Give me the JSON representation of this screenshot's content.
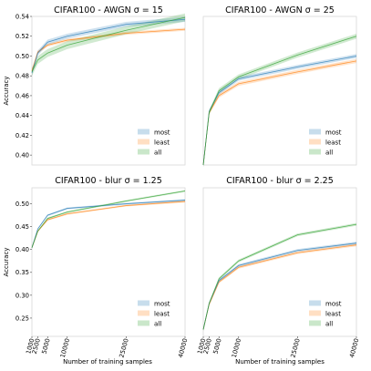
{
  "colors": {
    "most": "#1f77b4",
    "least": "#ff7f0e",
    "all": "#2ca02c"
  },
  "chart_data": [
    {
      "type": "line",
      "title": "CIFAR100 - AWGN σ = 15",
      "xlabel": "",
      "ylabel": "Accuracy",
      "xlim": [
        1000,
        40000
      ],
      "ylim": [
        0.39,
        0.54
      ],
      "yticks": [
        "0.40",
        "0.42",
        "0.44",
        "0.46",
        "0.48",
        "0.50",
        "0.52",
        "0.54"
      ],
      "ytick_values": [
        0.4,
        0.42,
        0.44,
        0.46,
        0.48,
        0.5,
        0.52,
        0.54
      ],
      "xticks": [],
      "xtick_values": [],
      "legend": {
        "position": "lower-right",
        "entries": [
          "most",
          "least",
          "all"
        ]
      },
      "x": [
        1000,
        2500,
        5000,
        10000,
        25000,
        40000
      ],
      "series": [
        {
          "name": "most",
          "values": [
            0.483,
            0.503,
            0.514,
            0.52,
            0.532,
            0.537
          ],
          "band": 0.0025
        },
        {
          "name": "least",
          "values": [
            0.485,
            0.504,
            0.511,
            0.516,
            0.523,
            0.527
          ],
          "band": 0.0015
        },
        {
          "name": "all",
          "values": [
            0.484,
            0.496,
            0.503,
            0.511,
            0.526,
            0.539
          ],
          "band": 0.004
        }
      ]
    },
    {
      "type": "line",
      "title": "CIFAR100 - AWGN σ = 25",
      "xlabel": "",
      "ylabel": "",
      "xlim": [
        1000,
        40000
      ],
      "ylim": [
        0.39,
        0.54
      ],
      "yticks": [],
      "ytick_values": [],
      "xticks": [],
      "xtick_values": [],
      "legend": {
        "position": "lower-right",
        "entries": [
          "most",
          "least",
          "all"
        ]
      },
      "x": [
        1000,
        2500,
        5000,
        10000,
        25000,
        40000
      ],
      "series": [
        {
          "name": "most",
          "values": [
            0.39,
            0.444,
            0.463,
            0.477,
            0.489,
            0.5
          ],
          "band": 0.002
        },
        {
          "name": "least",
          "values": [
            0.39,
            0.443,
            0.46,
            0.472,
            0.484,
            0.495
          ],
          "band": 0.002
        },
        {
          "name": "all",
          "values": [
            0.39,
            0.443,
            0.465,
            0.479,
            0.501,
            0.52
          ],
          "band": 0.0025
        }
      ]
    },
    {
      "type": "line",
      "title": "CIFAR100 - blur σ = 1.25",
      "xlabel": "",
      "ylabel": "Accuracy",
      "xlim": [
        1000,
        40000
      ],
      "ylim": [
        0.21,
        0.535
      ],
      "yticks": [
        "0.25",
        "0.30",
        "0.35",
        "0.40",
        "0.45",
        "0.50"
      ],
      "ytick_values": [
        0.25,
        0.3,
        0.35,
        0.4,
        0.45,
        0.5
      ],
      "xticks": [
        "1000",
        "2500",
        "5000",
        "10000",
        "25000",
        "40000"
      ],
      "xtick_values": [
        1000,
        2500,
        5000,
        10000,
        25000,
        40000
      ],
      "legend": {
        "position": "lower-right",
        "entries": [
          "most",
          "least",
          "all"
        ]
      },
      "x": [
        1000,
        2500,
        5000,
        10000,
        25000,
        40000
      ],
      "series": [
        {
          "name": "most",
          "values": [
            0.404,
            0.445,
            0.475,
            0.49,
            0.5,
            0.508
          ],
          "band": 0.002
        },
        {
          "name": "least",
          "values": [
            0.404,
            0.44,
            0.465,
            0.478,
            0.496,
            0.505
          ],
          "band": 0.002
        },
        {
          "name": "all",
          "values": [
            0.404,
            0.44,
            0.468,
            0.482,
            0.506,
            0.528
          ],
          "band": 0.002
        }
      ]
    },
    {
      "type": "line",
      "title": "CIFAR100 - blur σ = 2.25",
      "xlabel": "Number of training samples",
      "ylabel": "",
      "xlim": [
        1000,
        40000
      ],
      "ylim": [
        0.21,
        0.535
      ],
      "yticks": [],
      "ytick_values": [],
      "xticks": [
        "1000",
        "2500",
        "5000",
        "10000",
        "25000",
        "40000"
      ],
      "xtick_values": [
        1000,
        2500,
        5000,
        10000,
        25000,
        40000
      ],
      "legend": {
        "position": "lower-right",
        "entries": [
          "most",
          "least",
          "all"
        ]
      },
      "x": [
        1000,
        2500,
        5000,
        10000,
        25000,
        40000
      ],
      "series": [
        {
          "name": "most",
          "values": [
            0.225,
            0.282,
            0.332,
            0.365,
            0.398,
            0.414
          ],
          "band": 0.003
        },
        {
          "name": "least",
          "values": [
            0.225,
            0.28,
            0.329,
            0.361,
            0.393,
            0.41
          ],
          "band": 0.003
        },
        {
          "name": "all",
          "values": [
            0.225,
            0.282,
            0.336,
            0.375,
            0.432,
            0.455
          ],
          "band": 0.003
        }
      ]
    }
  ],
  "shared_xlabel_left": "Number of training samples"
}
